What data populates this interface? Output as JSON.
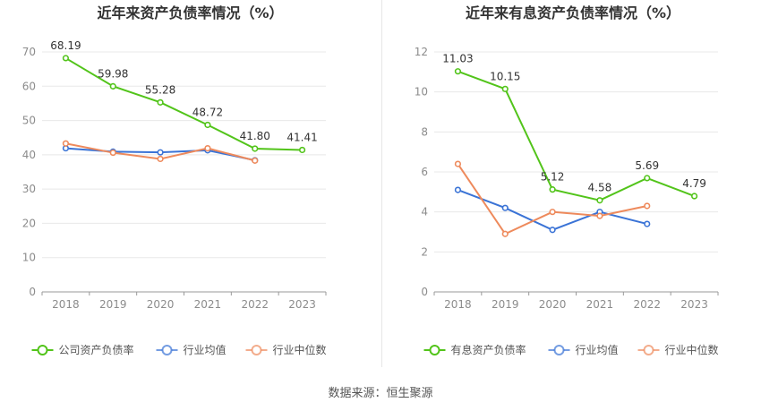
{
  "source": "数据来源：恒生聚源",
  "chart_data": [
    {
      "type": "line",
      "title": "近年来资产负债率情况（%）",
      "x": [
        "2018",
        "2019",
        "2020",
        "2021",
        "2022",
        "2023"
      ],
      "ylim": [
        0,
        70
      ],
      "yticks": [
        0,
        10,
        20,
        30,
        40,
        50,
        60,
        70
      ],
      "grid": true,
      "legend_position": "bottom",
      "series": [
        {
          "name": "公司资产负债率",
          "color": "#52c41a",
          "values": [
            68.19,
            59.98,
            55.28,
            48.72,
            41.8,
            41.41
          ],
          "labels": [
            "68.19",
            "59.98",
            "55.28",
            "48.72",
            "41.80",
            "41.41"
          ]
        },
        {
          "name": "行业均值",
          "color": "#3a73d6",
          "values": [
            41.9,
            40.9,
            40.7,
            41.3,
            38.4,
            null
          ]
        },
        {
          "name": "行业中位数",
          "color": "#ee8a5c",
          "values": [
            43.3,
            40.6,
            38.8,
            41.9,
            38.3,
            null
          ]
        }
      ]
    },
    {
      "type": "line",
      "title": "近年来有息资产负债率情况（%）",
      "x": [
        "2018",
        "2019",
        "2020",
        "2021",
        "2022",
        "2023"
      ],
      "ylim": [
        0,
        12
      ],
      "yticks": [
        0,
        2,
        4,
        6,
        8,
        10,
        12
      ],
      "grid": true,
      "legend_position": "bottom",
      "series": [
        {
          "name": "有息资产负债率",
          "color": "#52c41a",
          "values": [
            11.03,
            10.15,
            5.12,
            4.58,
            5.69,
            4.79
          ],
          "labels": [
            "11.03",
            "10.15",
            "5.12",
            "4.58",
            "5.69",
            "4.79"
          ]
        },
        {
          "name": "行业均值",
          "color": "#3a73d6",
          "values": [
            5.1,
            4.2,
            3.1,
            4.0,
            3.4,
            null
          ]
        },
        {
          "name": "行业中位数",
          "color": "#ee8a5c",
          "values": [
            6.4,
            2.9,
            4.0,
            3.8,
            4.3,
            null
          ]
        }
      ]
    }
  ]
}
